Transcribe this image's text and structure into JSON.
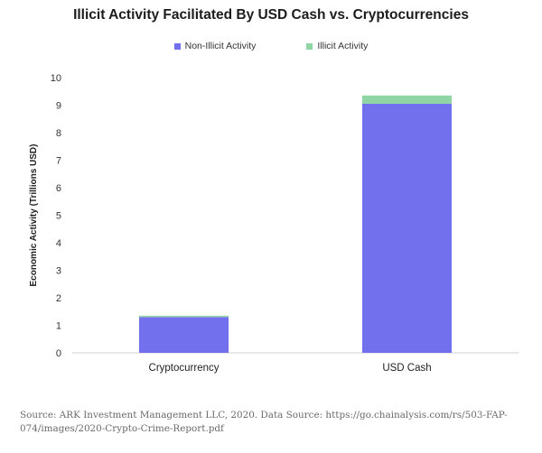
{
  "chart_data": {
    "type": "bar",
    "stacked": true,
    "title": "Illicit Activity Facilitated By USD Cash vs. Cryptocurrencies",
    "xlabel": "",
    "ylabel": "Economic Activity (Trillions USD)",
    "categories": [
      "Cryptocurrency",
      "USD Cash"
    ],
    "series": [
      {
        "name": "Non-Illicit Activity",
        "color": "#7370ee",
        "values": [
          1.3,
          9.05
        ]
      },
      {
        "name": "Illicit Activity",
        "color": "#8fd6a4",
        "values": [
          0.05,
          0.3
        ]
      }
    ],
    "ylim": [
      0,
      10
    ],
    "yticks": [
      0,
      1,
      2,
      3,
      4,
      5,
      6,
      7,
      8,
      9,
      10
    ],
    "grid": false,
    "legend_position": "top-center"
  },
  "source_text": "Source: ARK Investment Management LLC, 2020. Data Source: https://go.chainalysis.com/rs/503-FAP-074/images/2020-Crypto-Crime-Report.pdf"
}
